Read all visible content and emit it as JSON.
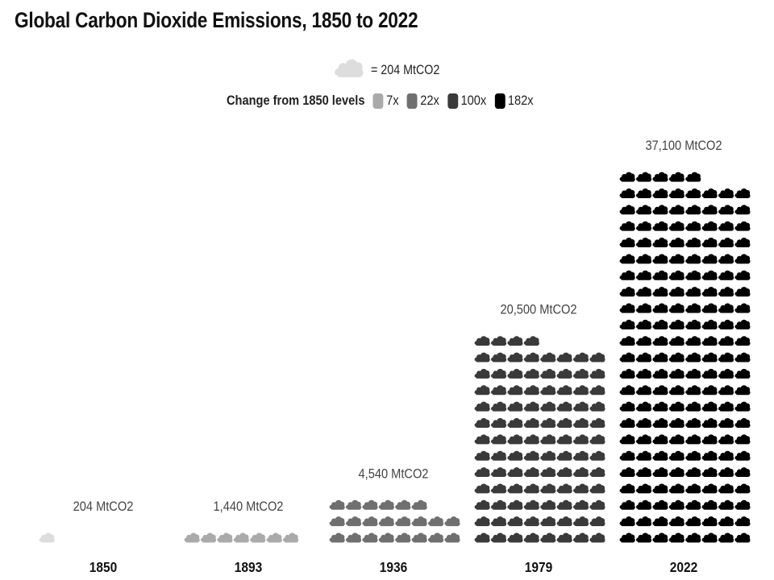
{
  "title": "Global Carbon Dioxide Emissions, 1850 to 2022",
  "chart_data": {
    "type": "pictogram",
    "title": "Global Carbon Dioxide Emissions, 1850 to 2022",
    "unit_label": "= 204 MtCO2",
    "unit_value": 204,
    "legend_title": "Change from 1850 levels",
    "legend": [
      {
        "label": "7x",
        "color": "#aaaaaa"
      },
      {
        "label": "22x",
        "color": "#6f6f6f"
      },
      {
        "label": "100x",
        "color": "#3a3a3a"
      },
      {
        "label": "182x",
        "color": "#000000"
      }
    ],
    "categories": [
      "1850",
      "1893",
      "1936",
      "1979",
      "2022"
    ],
    "values": [
      204,
      1440,
      4540,
      20500,
      37100
    ],
    "value_labels": [
      "204 MtCO2",
      "1,440 MtCO2",
      "4,540 MtCO2",
      "20,500 MtCO2",
      "37,100 MtCO2"
    ],
    "colors": [
      "#dddddd",
      "#aaaaaa",
      "#6f6f6f",
      "#3a3a3a",
      "#000000"
    ],
    "icons_per_row": 8
  }
}
